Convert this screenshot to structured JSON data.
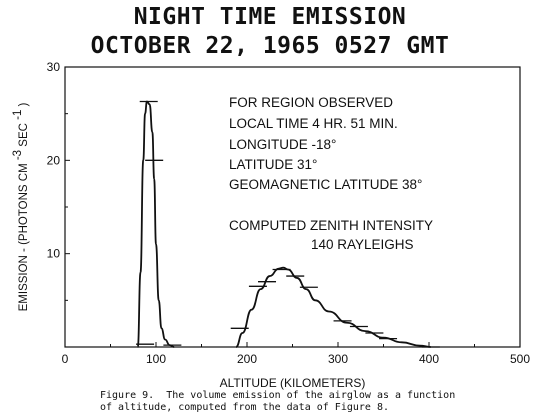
{
  "chart_data": {
    "type": "line",
    "title": "NIGHT TIME EMISSION",
    "subtitle": "OCTOBER 22, 1965 0527 GMT",
    "xlabel": "ALTITUDE (KILOMETERS)",
    "ylabel": "EMISSION - (PHOTONS CM",
    "ylabel_exp": "-3",
    "ylabel_mid": "SEC",
    "ylabel_exp2": "-1",
    "ylabel_close": ")",
    "xlim": [
      0,
      500
    ],
    "ylim": [
      0,
      30
    ],
    "xticks": [
      "0",
      "100",
      "200",
      "300",
      "400",
      "500"
    ],
    "yticks": [
      "10",
      "20",
      "30"
    ],
    "grid": false,
    "series": [
      {
        "x": [
          80,
          83,
          86,
          88,
          90,
          93,
          96,
          98,
          100,
          103,
          106,
          110,
          115,
          120
        ],
        "y": [
          0,
          8,
          20,
          25,
          26.3,
          26,
          23,
          18,
          11,
          5,
          2,
          0.8,
          0.2,
          0
        ]
      },
      {
        "x": [
          188,
          195,
          205,
          215,
          225,
          235,
          240,
          245,
          255,
          265,
          275,
          290,
          310,
          330,
          350,
          370,
          390,
          402
        ],
        "y": [
          0,
          1.5,
          4,
          6.2,
          7.6,
          8.4,
          8.5,
          8.3,
          7.4,
          6.2,
          5,
          3.8,
          2.6,
          1.7,
          1,
          0.5,
          0.15,
          0
        ]
      }
    ],
    "data_points": [
      {
        "x": 88,
        "y": 0.3
      },
      {
        "x": 92,
        "y": 26.3
      },
      {
        "x": 98,
        "y": 20
      },
      {
        "x": 118,
        "y": 0.2
      },
      {
        "x": 192,
        "y": 2
      },
      {
        "x": 212,
        "y": 6.5
      },
      {
        "x": 222,
        "y": 7
      },
      {
        "x": 238,
        "y": 8.3
      },
      {
        "x": 253,
        "y": 7.6
      },
      {
        "x": 268,
        "y": 6.4
      },
      {
        "x": 305,
        "y": 2.8
      },
      {
        "x": 323,
        "y": 2.2
      },
      {
        "x": 340,
        "y": 1.5
      },
      {
        "x": 355,
        "y": 0.9
      },
      {
        "x": 402,
        "y": 0
      }
    ],
    "annotations": [
      "FOR REGION OBSERVED",
      "LOCAL TIME 4 HR. 51 MIN.",
      "LONGITUDE -18°",
      "LATITUDE 31°",
      "GEOMAGNETIC LATITUDE 38°",
      "COMPUTED ZENITH INTENSITY",
      "140 RAYLEIGHS"
    ]
  },
  "caption": {
    "line1": "Figure 9.  The volume emission of the airglow as a function",
    "line2": "of altitude, computed from the data of Figure 8."
  }
}
